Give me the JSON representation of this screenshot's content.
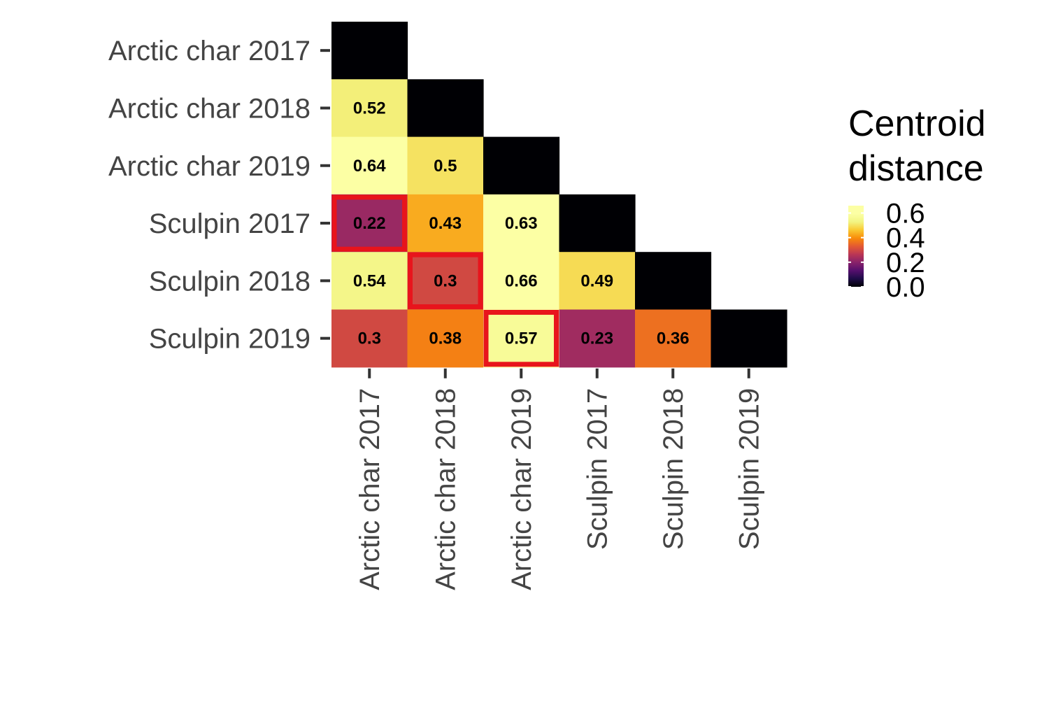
{
  "chart_data": {
    "type": "heatmap",
    "categories": [
      "Arctic char 2017",
      "Arctic char 2018",
      "Arctic char 2019",
      "Sculpin 2017",
      "Sculpin 2018",
      "Sculpin 2019"
    ],
    "cells": [
      {
        "row": 0,
        "col": 0,
        "value": 0,
        "label": "",
        "highlight": false
      },
      {
        "row": 1,
        "col": 0,
        "value": 0.52,
        "label": "0.52",
        "highlight": false
      },
      {
        "row": 1,
        "col": 1,
        "value": 0,
        "label": "",
        "highlight": false
      },
      {
        "row": 2,
        "col": 0,
        "value": 0.64,
        "label": "0.64",
        "highlight": false
      },
      {
        "row": 2,
        "col": 1,
        "value": 0.5,
        "label": "0.5",
        "highlight": false
      },
      {
        "row": 2,
        "col": 2,
        "value": 0,
        "label": "",
        "highlight": false
      },
      {
        "row": 3,
        "col": 0,
        "value": 0.22,
        "label": "0.22",
        "highlight": true
      },
      {
        "row": 3,
        "col": 1,
        "value": 0.43,
        "label": "0.43",
        "highlight": false
      },
      {
        "row": 3,
        "col": 2,
        "value": 0.63,
        "label": "0.63",
        "highlight": false
      },
      {
        "row": 3,
        "col": 3,
        "value": 0,
        "label": "",
        "highlight": false
      },
      {
        "row": 4,
        "col": 0,
        "value": 0.54,
        "label": "0.54",
        "highlight": false
      },
      {
        "row": 4,
        "col": 1,
        "value": 0.3,
        "label": "0.3",
        "highlight": true
      },
      {
        "row": 4,
        "col": 2,
        "value": 0.66,
        "label": "0.66",
        "highlight": false
      },
      {
        "row": 4,
        "col": 3,
        "value": 0.49,
        "label": "0.49",
        "highlight": false
      },
      {
        "row": 4,
        "col": 4,
        "value": 0,
        "label": "",
        "highlight": false
      },
      {
        "row": 5,
        "col": 0,
        "value": 0.3,
        "label": "0.3",
        "highlight": false
      },
      {
        "row": 5,
        "col": 1,
        "value": 0.38,
        "label": "0.38",
        "highlight": false
      },
      {
        "row": 5,
        "col": 2,
        "value": 0.57,
        "label": "0.57",
        "highlight": true
      },
      {
        "row": 5,
        "col": 3,
        "value": 0.23,
        "label": "0.23",
        "highlight": false
      },
      {
        "row": 5,
        "col": 4,
        "value": 0.36,
        "label": "0.36",
        "highlight": false
      },
      {
        "row": 5,
        "col": 5,
        "value": 0,
        "label": "",
        "highlight": false
      }
    ],
    "colorscale": "inferno",
    "value_range": [
      0,
      0.66
    ],
    "highlight_color": "#e8141c",
    "legend": {
      "title_lines": [
        "Centroid",
        "distance"
      ],
      "ticks": [
        0.6,
        0.4,
        0.2,
        0.0
      ],
      "tick_labels": [
        "0.6",
        "0.4",
        "0.2",
        "0.0"
      ],
      "position": "right"
    }
  }
}
